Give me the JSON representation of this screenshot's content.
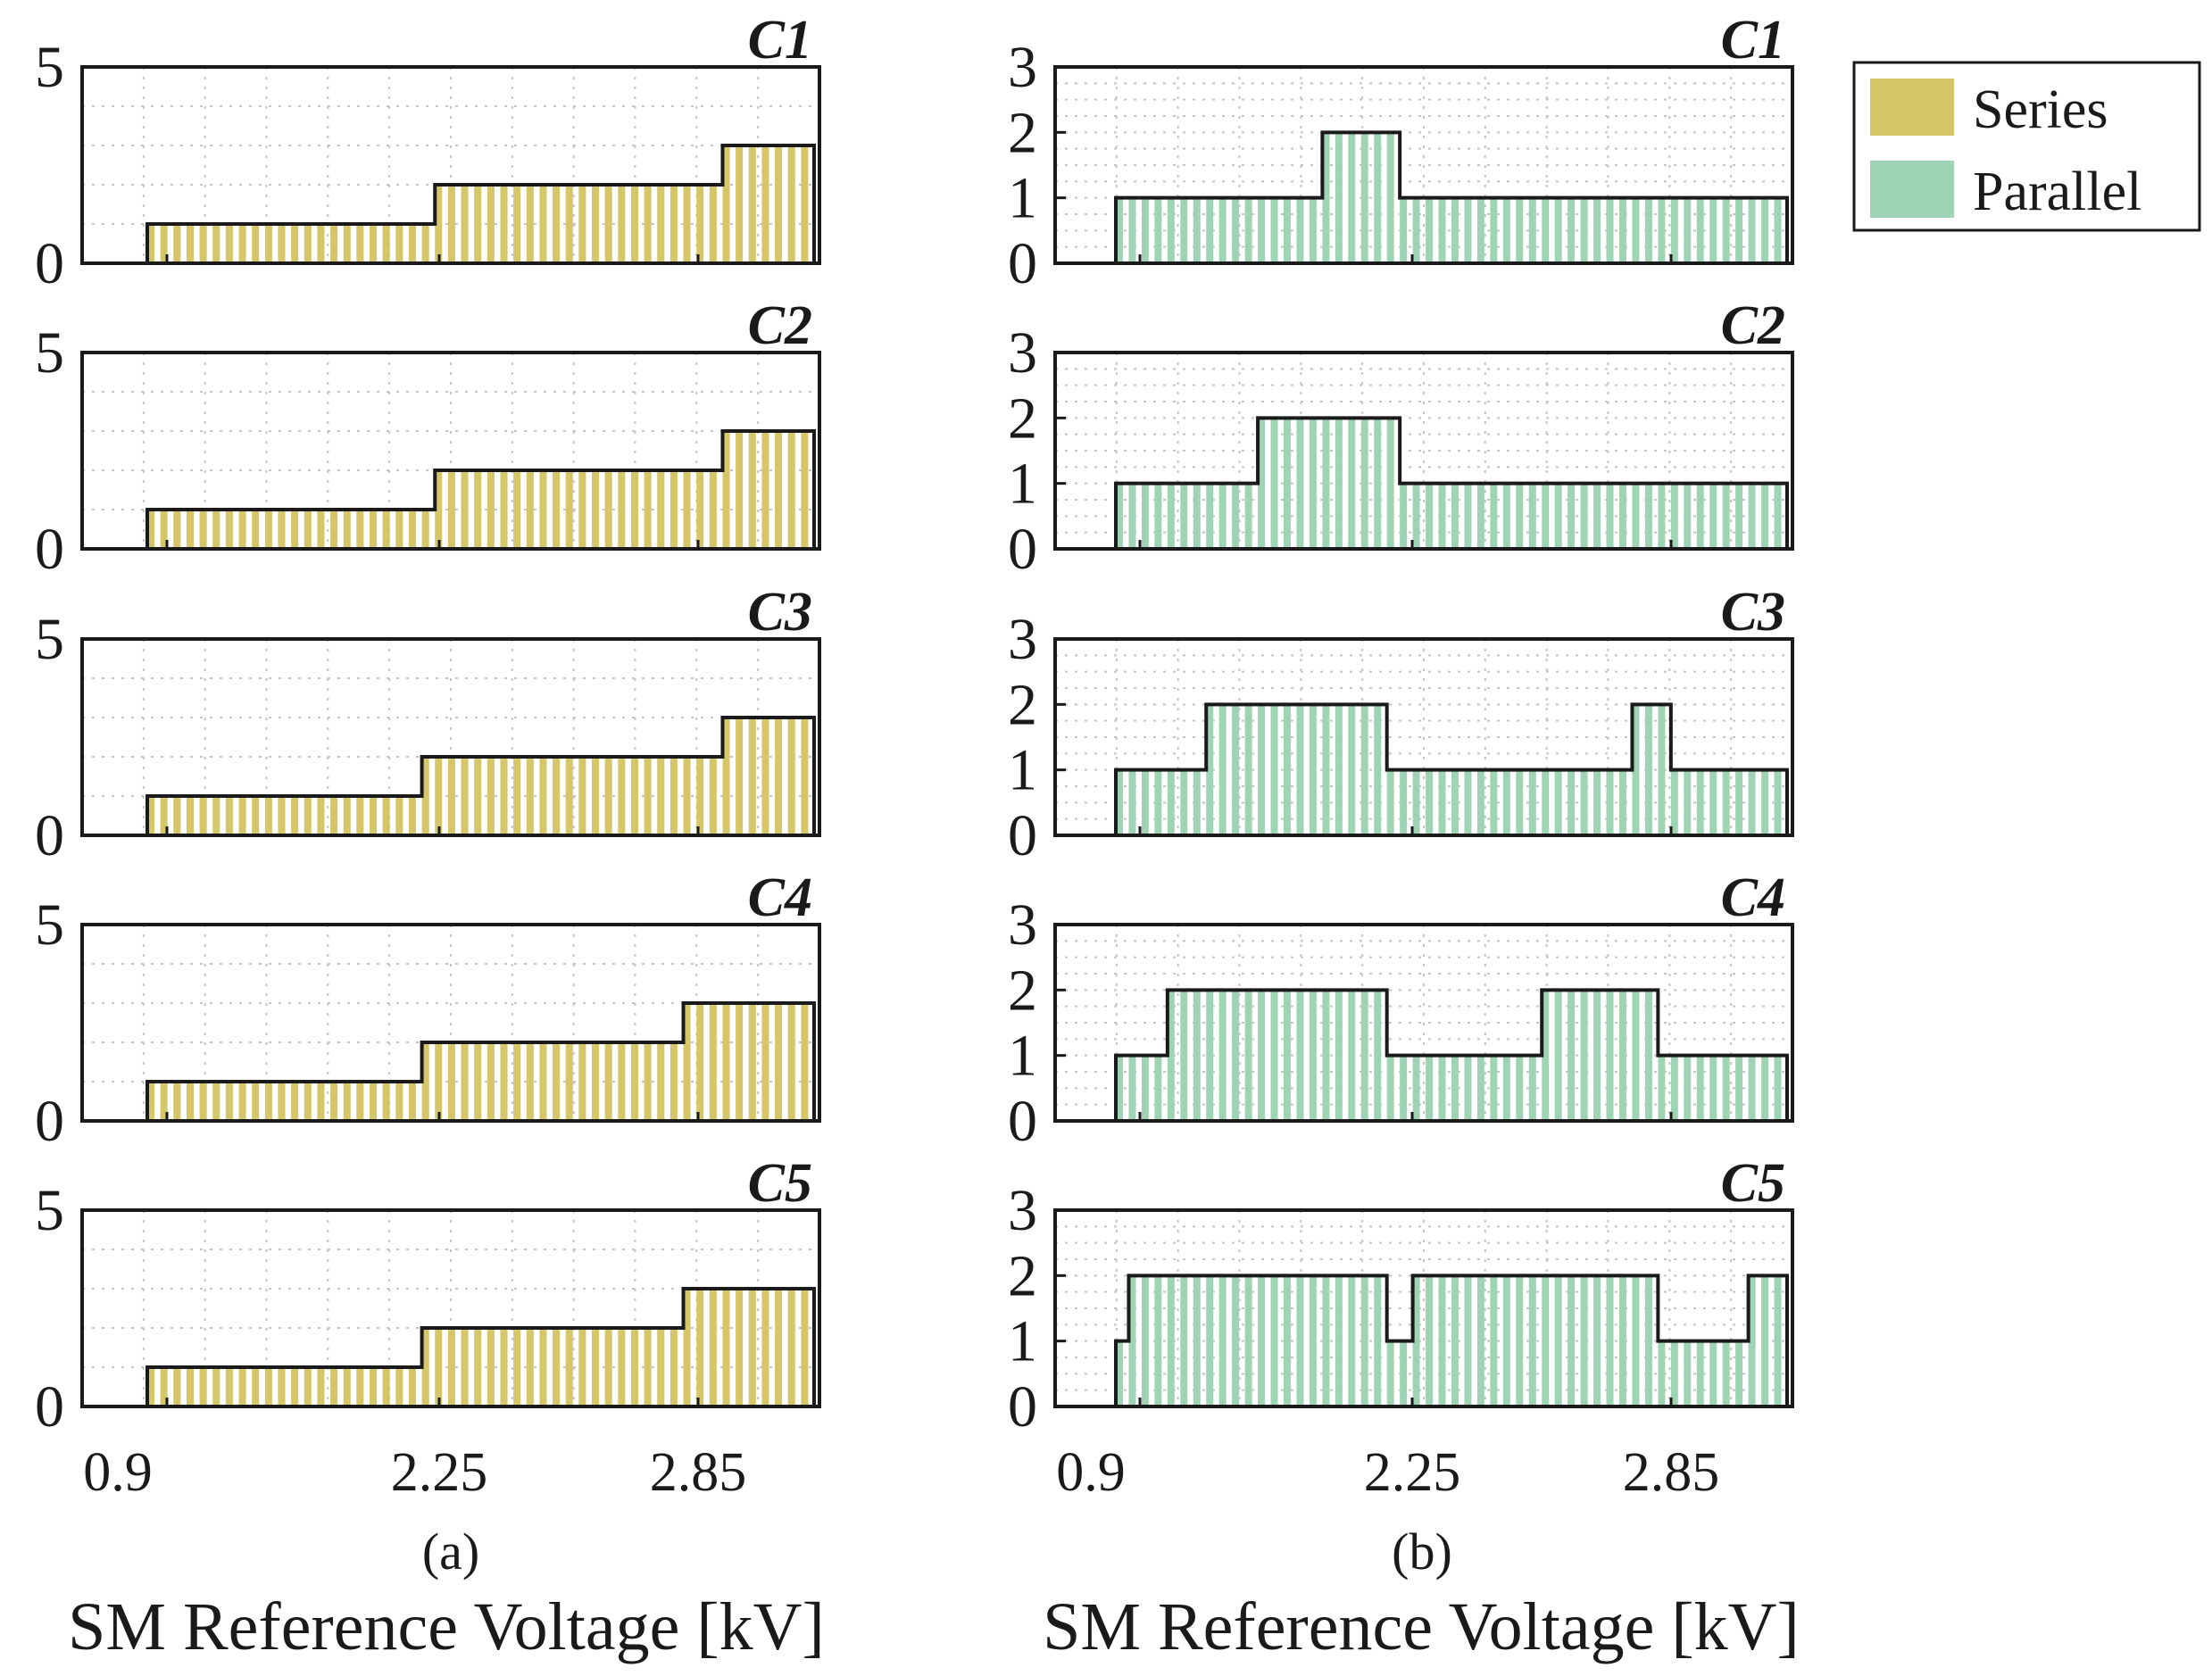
{
  "chart_data": {
    "type": "bar",
    "xlabel": "SM Reference Voltage [kV]",
    "x_tick_labels": [
      "0.9",
      "2.25",
      "2.85"
    ],
    "legend": [
      {
        "name": "Series",
        "color": "#d5c66a"
      },
      {
        "name": "Parallel",
        "color": "#9ed4b3"
      }
    ],
    "grid": "dotted, major and minor",
    "legend_position": "top-right",
    "bar_width_fraction": 0.55,
    "columns": [
      {
        "caption": "(a)",
        "series_name": "Series",
        "color": "#d5c66a",
        "ylim": [
          0,
          5
        ],
        "y_ticks": [
          "0",
          "5"
        ],
        "xlim": [
          0,
          42
        ],
        "panels": [
          {
            "title": "C1",
            "values": [
              1,
              1,
              1,
              1,
              1,
              1,
              1,
              1,
              1,
              1,
              1,
              1,
              1,
              1,
              1,
              1,
              1,
              1,
              1,
              1,
              1,
              1,
              2,
              2,
              2,
              2,
              2,
              2,
              2,
              2,
              2,
              2,
              2,
              2,
              2,
              2,
              2,
              2,
              2,
              2,
              2,
              2,
              2,
              2,
              3,
              3,
              3,
              3,
              3,
              3,
              3
            ]
          },
          {
            "title": "C2",
            "values": [
              1,
              1,
              1,
              1,
              1,
              1,
              1,
              1,
              1,
              1,
              1,
              1,
              1,
              1,
              1,
              1,
              1,
              1,
              1,
              1,
              1,
              1,
              2,
              2,
              2,
              2,
              2,
              2,
              2,
              2,
              2,
              2,
              2,
              2,
              2,
              2,
              2,
              2,
              2,
              2,
              2,
              2,
              2,
              2,
              3,
              3,
              3,
              3,
              3,
              3,
              3
            ]
          },
          {
            "title": "C3",
            "values": [
              1,
              1,
              1,
              1,
              1,
              1,
              1,
              1,
              1,
              1,
              1,
              1,
              1,
              1,
              1,
              1,
              1,
              1,
              1,
              1,
              1,
              2,
              2,
              2,
              2,
              2,
              2,
              2,
              2,
              2,
              2,
              2,
              2,
              2,
              2,
              2,
              2,
              2,
              2,
              2,
              2,
              2,
              2,
              2,
              3,
              3,
              3,
              3,
              3,
              3,
              3
            ]
          },
          {
            "title": "C4",
            "values": [
              1,
              1,
              1,
              1,
              1,
              1,
              1,
              1,
              1,
              1,
              1,
              1,
              1,
              1,
              1,
              1,
              1,
              1,
              1,
              1,
              1,
              2,
              2,
              2,
              2,
              2,
              2,
              2,
              2,
              2,
              2,
              2,
              2,
              2,
              2,
              2,
              2,
              2,
              2,
              2,
              2,
              3,
              3,
              3,
              3,
              3,
              3,
              3,
              3,
              3,
              3
            ]
          },
          {
            "title": "C5",
            "values": [
              1,
              1,
              1,
              1,
              1,
              1,
              1,
              1,
              1,
              1,
              1,
              1,
              1,
              1,
              1,
              1,
              1,
              1,
              1,
              1,
              1,
              2,
              2,
              2,
              2,
              2,
              2,
              2,
              2,
              2,
              2,
              2,
              2,
              2,
              2,
              2,
              2,
              2,
              2,
              2,
              2,
              3,
              3,
              3,
              3,
              3,
              3,
              3,
              3,
              3,
              3
            ]
          }
        ]
      },
      {
        "caption": "(b)",
        "series_name": "Parallel",
        "color": "#9ed4b3",
        "ylim": [
          0,
          3
        ],
        "y_ticks": [
          "0",
          "1",
          "2",
          "3"
        ],
        "xlim": [
          0,
          42
        ],
        "panels": [
          {
            "title": "C1",
            "values": [
              1,
              1,
              1,
              1,
              1,
              1,
              1,
              1,
              1,
              1,
              1,
              1,
              1,
              1,
              1,
              1,
              2,
              2,
              2,
              2,
              2,
              2,
              1,
              1,
              1,
              1,
              1,
              1,
              1,
              1,
              1,
              1,
              1,
              1,
              1,
              1,
              1,
              1,
              1,
              1,
              1,
              1,
              1,
              1,
              1,
              1,
              1,
              1,
              1,
              1,
              1,
              1
            ]
          },
          {
            "title": "C2",
            "values": [
              1,
              1,
              1,
              1,
              1,
              1,
              1,
              1,
              1,
              1,
              1,
              2,
              2,
              2,
              2,
              2,
              2,
              2,
              2,
              2,
              2,
              2,
              1,
              1,
              1,
              1,
              1,
              1,
              1,
              1,
              1,
              1,
              1,
              1,
              1,
              1,
              1,
              1,
              1,
              1,
              1,
              1,
              1,
              1,
              1,
              1,
              1,
              1,
              1,
              1,
              1,
              1
            ]
          },
          {
            "title": "C3",
            "values": [
              1,
              1,
              1,
              1,
              1,
              1,
              1,
              2,
              2,
              2,
              2,
              2,
              2,
              2,
              2,
              2,
              2,
              2,
              2,
              2,
              2,
              1,
              1,
              1,
              1,
              1,
              1,
              1,
              1,
              1,
              1,
              1,
              1,
              1,
              1,
              1,
              1,
              1,
              1,
              1,
              2,
              2,
              2,
              1,
              1,
              1,
              1,
              1,
              1,
              1,
              1,
              1
            ]
          },
          {
            "title": "C4",
            "values": [
              1,
              1,
              1,
              1,
              2,
              2,
              2,
              2,
              2,
              2,
              2,
              2,
              2,
              2,
              2,
              2,
              2,
              2,
              2,
              2,
              2,
              1,
              1,
              1,
              1,
              1,
              1,
              1,
              1,
              1,
              1,
              1,
              1,
              2,
              2,
              2,
              2,
              2,
              2,
              2,
              2,
              2,
              1,
              1,
              1,
              1,
              1,
              1,
              1,
              1,
              1,
              1
            ]
          },
          {
            "title": "C5",
            "values": [
              1,
              2,
              2,
              2,
              2,
              2,
              2,
              2,
              2,
              2,
              2,
              2,
              2,
              2,
              2,
              2,
              2,
              2,
              2,
              2,
              2,
              1,
              1,
              2,
              2,
              2,
              2,
              2,
              2,
              2,
              2,
              2,
              2,
              2,
              2,
              2,
              2,
              2,
              2,
              2,
              2,
              2,
              1,
              1,
              1,
              1,
              1,
              1,
              1,
              2,
              2,
              2
            ]
          }
        ]
      }
    ]
  }
}
